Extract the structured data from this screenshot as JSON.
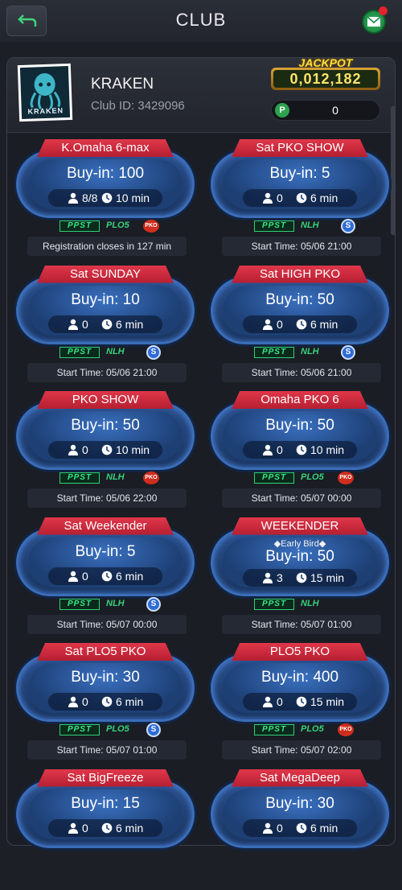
{
  "header": {
    "title": "CLUB"
  },
  "club": {
    "name": "KRAKEN",
    "club_id": "Club ID: 3429096",
    "logo_text": "KRAKEN"
  },
  "jackpot": {
    "label": "JACKPOT",
    "value": "0,012,182"
  },
  "points": {
    "icon_letter": "P",
    "value": "0"
  },
  "tables": [
    {
      "name": "K.Omaha 6-max",
      "buyin": "Buy-in: 100",
      "players": "8/8",
      "time": "10 min",
      "brand": "PPST",
      "game": "PLO5",
      "badge": "PKO",
      "footer": "Registration closes in 127 min",
      "note": ""
    },
    {
      "name": "Sat PKO SHOW",
      "buyin": "Buy-in: 5",
      "players": "0",
      "time": "6 min",
      "brand": "PPST",
      "game": "NLH",
      "badge": "S",
      "footer": "Start Time: 05/06 21:00",
      "note": ""
    },
    {
      "name": "Sat SUNDAY",
      "buyin": "Buy-in: 10",
      "players": "0",
      "time": "6 min",
      "brand": "PPST",
      "game": "NLH",
      "badge": "S",
      "footer": "Start Time: 05/06 21:00",
      "note": ""
    },
    {
      "name": "Sat HIGH PKO",
      "buyin": "Buy-in: 50",
      "players": "0",
      "time": "6 min",
      "brand": "PPST",
      "game": "NLH",
      "badge": "S",
      "footer": "Start Time: 05/06 21:00",
      "note": ""
    },
    {
      "name": "PKO SHOW",
      "buyin": "Buy-in: 50",
      "players": "0",
      "time": "10 min",
      "brand": "PPST",
      "game": "NLH",
      "badge": "PKO",
      "footer": "Start Time: 05/06 22:00",
      "note": ""
    },
    {
      "name": "Omaha PKO 6",
      "buyin": "Buy-in: 50",
      "players": "0",
      "time": "10 min",
      "brand": "PPST",
      "game": "PLO5",
      "badge": "PKO",
      "footer": "Start Time: 05/07 00:00",
      "note": ""
    },
    {
      "name": "Sat Weekender",
      "buyin": "Buy-in: 5",
      "players": "0",
      "time": "6 min",
      "brand": "PPST",
      "game": "NLH",
      "badge": "S",
      "footer": "Start Time: 05/07 00:00",
      "note": ""
    },
    {
      "name": "WEEKENDER",
      "buyin": "Buy-in: 50",
      "players": "3",
      "time": "15 min",
      "brand": "PPST",
      "game": "NLH",
      "badge": "",
      "footer": "Start Time: 05/07 01:00",
      "note": "◆Early Bird◆"
    },
    {
      "name": "Sat PLO5 PKO",
      "buyin": "Buy-in: 30",
      "players": "0",
      "time": "6 min",
      "brand": "PPST",
      "game": "PLO5",
      "badge": "S",
      "footer": "Start Time: 05/07 01:00",
      "note": ""
    },
    {
      "name": "PLO5 PKO",
      "buyin": "Buy-in: 400",
      "players": "0",
      "time": "15 min",
      "brand": "PPST",
      "game": "PLO5",
      "badge": "PKO",
      "footer": "Start Time: 05/07 02:00",
      "note": ""
    },
    {
      "name": "Sat BigFreeze",
      "buyin": "Buy-in: 15",
      "players": "0",
      "time": "6 min",
      "brand": "",
      "game": "",
      "badge": "",
      "footer": "",
      "note": ""
    },
    {
      "name": "Sat MegaDeep",
      "buyin": "Buy-in: 30",
      "players": "0",
      "time": "6 min",
      "brand": "",
      "game": "",
      "badge": "",
      "footer": "",
      "note": ""
    }
  ],
  "colors": {
    "background": "#1c1f26",
    "banner": "#d22b3e",
    "oval": "#2a5596",
    "accent_green": "#36d27d",
    "jackpot_gold": "#ffe36b"
  },
  "icons": {
    "back": "back-arrow-icon",
    "mail": "mail-icon",
    "player": "person-icon",
    "clock": "clock-icon"
  }
}
